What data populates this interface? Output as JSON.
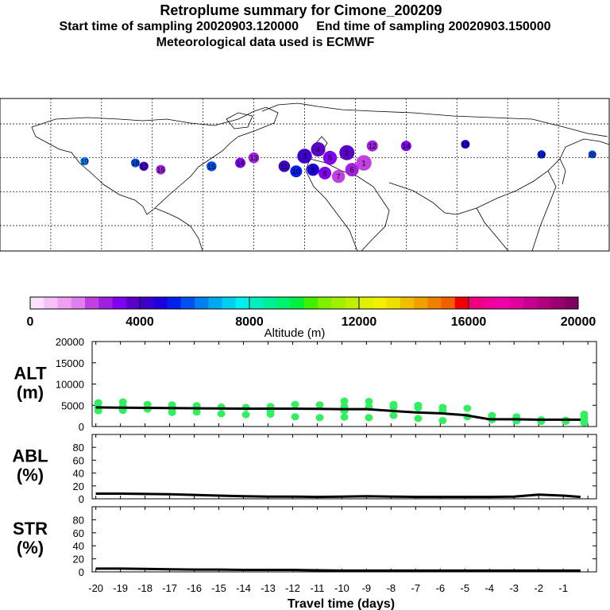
{
  "header": {
    "title": "Retroplume summary for Cimone_200209",
    "start_label": "Start time of sampling 20020903.120000",
    "end_label": "End time of sampling 20020903.150000",
    "met_label": "Meteorological data used is ECMWF"
  },
  "map": {
    "plume_points": [
      {
        "lon": -12,
        "lat": 50,
        "age": 11,
        "alt": 4200
      },
      {
        "lon": -5,
        "lat": 47,
        "age": 10,
        "alt": 5000
      },
      {
        "lon": 5,
        "lat": 48,
        "age": 9,
        "alt": 4500
      },
      {
        "lon": 12,
        "lat": 46,
        "age": 8,
        "alt": 3000
      },
      {
        "lon": 20,
        "lat": 44,
        "age": 7,
        "alt": 2000
      },
      {
        "lon": 28,
        "lat": 48,
        "age": 6,
        "alt": 2500
      },
      {
        "lon": 15,
        "lat": 55,
        "age": 5,
        "alt": 3200
      },
      {
        "lon": 8,
        "lat": 60,
        "age": 4,
        "alt": 3800
      },
      {
        "lon": 0,
        "lat": 56,
        "age": 3,
        "alt": 4400
      },
      {
        "lon": 25,
        "lat": 58,
        "age": 2,
        "alt": 3600
      },
      {
        "lon": 35,
        "lat": 52,
        "age": 1,
        "alt": 2200
      },
      {
        "lon": -30,
        "lat": 55,
        "age": 13,
        "alt": 2800
      },
      {
        "lon": -38,
        "lat": 52,
        "age": 14,
        "alt": 3400
      },
      {
        "lon": -55,
        "lat": 50,
        "age": 15,
        "alt": 5500
      },
      {
        "lon": -85,
        "lat": 48,
        "age": 16,
        "alt": 2600
      },
      {
        "lon": -95,
        "lat": 50,
        "age": 17,
        "alt": 4000
      },
      {
        "lon": -100,
        "lat": 52,
        "age": 18,
        "alt": 5600
      },
      {
        "lon": -130,
        "lat": 53,
        "age": 19,
        "alt": 6200
      },
      {
        "lon": 40,
        "lat": 62,
        "age": 12,
        "alt": 2600
      },
      {
        "lon": 60,
        "lat": 62,
        "age": 14,
        "alt": 3200
      },
      {
        "lon": 95,
        "lat": 63,
        "age": 18,
        "alt": 4800
      },
      {
        "lon": 140,
        "lat": 57,
        "age": 19,
        "alt": 5200
      },
      {
        "lon": 170,
        "lat": 57,
        "age": 20,
        "alt": 5800
      }
    ]
  },
  "colorbar": {
    "ticks": [
      "0",
      "4000",
      "8000",
      "12000",
      "16000",
      "20000"
    ],
    "label": "Altitude (m)",
    "max": 20000,
    "colors": [
      "#ffe0ff",
      "#f8c0f8",
      "#f0a0f0",
      "#e080f0",
      "#c040e0",
      "#a020e0",
      "#8000f0",
      "#5a00c8",
      "#3c00c8",
      "#1e00dc",
      "#0020f0",
      "#0050f0",
      "#0080f0",
      "#00a8f0",
      "#00d0f0",
      "#00f0f0",
      "#00f0c0",
      "#00f098",
      "#00f070",
      "#00f040",
      "#40f000",
      "#80f000",
      "#a0f000",
      "#c0f000",
      "#e0f000",
      "#f0f000",
      "#f0e000",
      "#f0c000",
      "#f0a000",
      "#f08000",
      "#f06000",
      "#f00000",
      "#f0007f",
      "#f00098",
      "#f000a8",
      "#e000a0",
      "#c80090",
      "#b00080",
      "#980070",
      "#800060"
    ]
  },
  "chart_data": [
    {
      "type": "scatter",
      "name": "ALT",
      "title_top": "ALT",
      "title_bottom": "(m)",
      "ylim": [
        0,
        20000
      ],
      "yticks": [
        "20000",
        "15000",
        "10000",
        "5000",
        "0"
      ],
      "xlim": [
        -20.15,
        0.35
      ],
      "points": [
        [
          -19.9,
          5600
        ],
        [
          -19.9,
          4500
        ],
        [
          -19.9,
          3700
        ],
        [
          -18.9,
          5800
        ],
        [
          -18.9,
          4700
        ],
        [
          -18.9,
          3800
        ],
        [
          -17.9,
          5200
        ],
        [
          -17.9,
          4100
        ],
        [
          -16.9,
          5100
        ],
        [
          -16.9,
          4200
        ],
        [
          -16.9,
          3300
        ],
        [
          -15.9,
          4900
        ],
        [
          -15.9,
          3400
        ],
        [
          -14.9,
          4600
        ],
        [
          -14.9,
          3000
        ],
        [
          -13.9,
          4500
        ],
        [
          -13.9,
          2800
        ],
        [
          -12.9,
          4700
        ],
        [
          -12.9,
          3700
        ],
        [
          -12.9,
          2900
        ],
        [
          -11.9,
          5200
        ],
        [
          -11.9,
          2300
        ],
        [
          -10.9,
          5100
        ],
        [
          -10.9,
          2100
        ],
        [
          -9.9,
          6000
        ],
        [
          -9.9,
          4700
        ],
        [
          -9.9,
          3700
        ],
        [
          -9.9,
          2200
        ],
        [
          -8.9,
          5900
        ],
        [
          -8.9,
          4600
        ],
        [
          -8.9,
          2100
        ],
        [
          -7.9,
          5200
        ],
        [
          -7.9,
          4600
        ],
        [
          -7.9,
          2600
        ],
        [
          -6.9,
          5000
        ],
        [
          -6.9,
          4400
        ],
        [
          -6.9,
          1900
        ],
        [
          -5.9,
          4500
        ],
        [
          -5.9,
          3600
        ],
        [
          -5.9,
          1400
        ],
        [
          -4.9,
          4300
        ],
        [
          -4.9,
          2300
        ],
        [
          -3.9,
          2600
        ],
        [
          -3.9,
          1600
        ],
        [
          -2.9,
          2300
        ],
        [
          -2.9,
          1300
        ],
        [
          -1.9,
          1600
        ],
        [
          -1.9,
          1200
        ],
        [
          -0.9,
          1500
        ],
        [
          -0.9,
          1200
        ],
        [
          -0.15,
          2900
        ],
        [
          -0.15,
          2100
        ],
        [
          -0.15,
          1200
        ],
        [
          -0.15,
          900
        ]
      ],
      "line": [
        [
          -20,
          4500
        ],
        [
          -19,
          4450
        ],
        [
          -18,
          4400
        ],
        [
          -17,
          4350
        ],
        [
          -16,
          4300
        ],
        [
          -15,
          4250
        ],
        [
          -14,
          4200
        ],
        [
          -13,
          4200
        ],
        [
          -12,
          4200
        ],
        [
          -11,
          4150
        ],
        [
          -10,
          4100
        ],
        [
          -9,
          4100
        ],
        [
          -8,
          3700
        ],
        [
          -7,
          3300
        ],
        [
          -6,
          3100
        ],
        [
          -5,
          2700
        ],
        [
          -4,
          1700
        ],
        [
          -3,
          1700
        ],
        [
          -2,
          1600
        ],
        [
          -1,
          1600
        ],
        [
          -0.3,
          1600
        ]
      ]
    },
    {
      "type": "line",
      "name": "ABL",
      "title_top": "ABL",
      "title_bottom": "(%)",
      "ylim": [
        0,
        100
      ],
      "yticks": [
        "80",
        "60",
        "40",
        "20",
        "0"
      ],
      "xlim": [
        -20.15,
        0.35
      ],
      "line": [
        [
          -20,
          8
        ],
        [
          -19,
          8
        ],
        [
          -18,
          7.5
        ],
        [
          -17,
          7
        ],
        [
          -16,
          6
        ],
        [
          -15,
          5
        ],
        [
          -14,
          4
        ],
        [
          -13,
          3.5
        ],
        [
          -12,
          3.5
        ],
        [
          -11,
          3
        ],
        [
          -10,
          3.5
        ],
        [
          -9,
          4
        ],
        [
          -8,
          3.5
        ],
        [
          -7,
          3
        ],
        [
          -6,
          3
        ],
        [
          -5,
          3
        ],
        [
          -4,
          3
        ],
        [
          -3,
          3.5
        ],
        [
          -2,
          6.5
        ],
        [
          -1,
          5
        ],
        [
          -0.3,
          3
        ]
      ]
    },
    {
      "type": "line",
      "name": "STR",
      "title_top": "STR",
      "title_bottom": "(%)",
      "ylim": [
        0,
        100
      ],
      "yticks": [
        "80",
        "60",
        "40",
        "20",
        "0"
      ],
      "xlim": [
        -20.15,
        0.35
      ],
      "xticks": [
        -20,
        -19,
        -18,
        -17,
        -16,
        -15,
        -14,
        -13,
        -12,
        -11,
        -10,
        -9,
        -8,
        -7,
        -6,
        -5,
        -4,
        -3,
        -2,
        -1
      ],
      "xtick_labels": [
        "-20",
        "-19",
        "-18",
        "-17",
        "-16",
        "-15",
        "-14",
        "-13",
        "-12",
        "-11",
        "-10",
        "-9",
        "-8",
        "-7",
        "-6",
        "-5",
        "-4",
        "-3",
        "-2",
        "-1"
      ],
      "xlabel": "Travel time (days)",
      "line": [
        [
          -20,
          5
        ],
        [
          -19,
          5
        ],
        [
          -18,
          4.5
        ],
        [
          -17,
          4
        ],
        [
          -16,
          3.5
        ],
        [
          -15,
          3.5
        ],
        [
          -14,
          3
        ],
        [
          -13,
          3
        ],
        [
          -12,
          3
        ],
        [
          -11,
          2.5
        ],
        [
          -10,
          2
        ],
        [
          -9,
          2
        ],
        [
          -8,
          2
        ],
        [
          -7,
          2
        ],
        [
          -6,
          2
        ],
        [
          -5,
          2
        ],
        [
          -4,
          2
        ],
        [
          -3,
          2
        ],
        [
          -2,
          2
        ],
        [
          -1,
          2
        ],
        [
          -0.3,
          2
        ]
      ]
    }
  ]
}
